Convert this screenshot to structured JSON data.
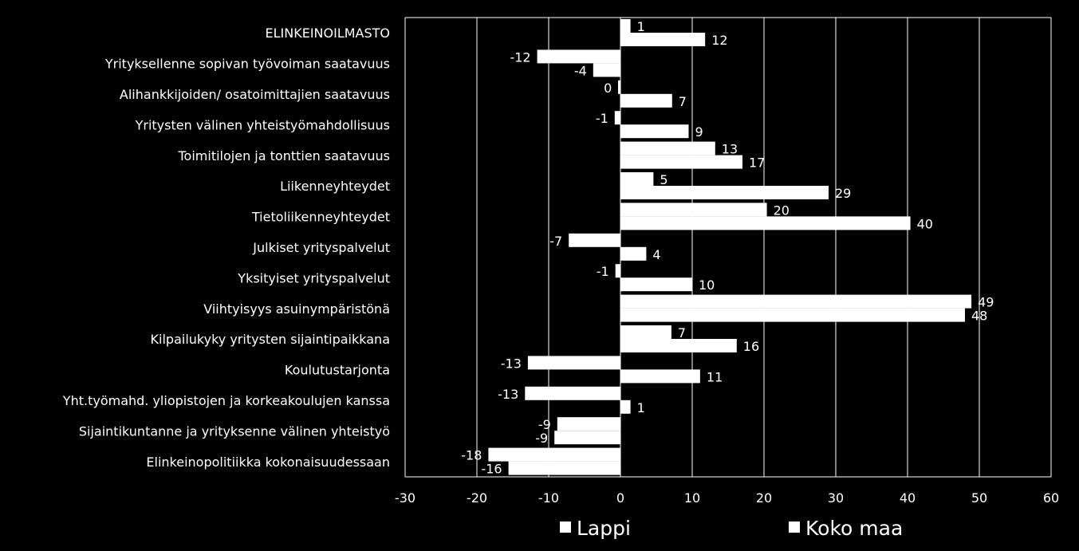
{
  "chart_data": {
    "type": "bar",
    "orientation": "horizontal",
    "categories": [
      "ELINKEINOILMASTO",
      "Yrityksellenne sopivan työvoiman saatavuus",
      "Alihankkijoiden/ osatoimittajien saatavuus",
      "Yritysten välinen yhteistyömahdollisuus",
      "Toimitilojen ja tonttien saatavuus",
      "Liikenneyhteydet",
      "Tietoliikenneyhteydet",
      "Julkiset yrityspalvelut",
      "Yksityiset yrityspalvelut",
      "Viihtyisyys asuinympäristönä",
      "Kilpailukyky yritysten sijaintipaikkana",
      "Koulutustarjonta",
      "Yht.työmahd. yliopistojen ja korkeakoulujen kanssa",
      "Sijaintikuntanne ja yrityksenne välinen yhteistyö",
      "Elinkeinopolitiikka kokonaisuudessaan"
    ],
    "series": [
      {
        "name": "Lappi",
        "values": [
          1.4,
          -11.6,
          -0.3,
          -0.8,
          13.2,
          4.6,
          20.4,
          -7.2,
          -0.7,
          48.9,
          7.1,
          -12.9,
          -13.3,
          -8.8,
          -18.4
        ],
        "labels": [
          "1",
          "-12",
          "0",
          "-1",
          "13",
          "5",
          "20",
          "-7",
          "-1",
          "49",
          "7",
          "-13",
          "-13",
          "-9",
          "-18"
        ]
      },
      {
        "name": "Koko maa",
        "values": [
          11.8,
          -3.8,
          7.2,
          9.5,
          17.0,
          29.0,
          40.4,
          3.6,
          10.0,
          48.0,
          16.2,
          11.1,
          1.4,
          -9.2,
          -15.6
        ],
        "labels": [
          "12",
          "-4",
          "7",
          "9",
          "17",
          "29",
          "40",
          "4",
          "10",
          "48",
          "16",
          "11",
          "1",
          "-9",
          "-16"
        ]
      }
    ],
    "xlim": [
      -30,
      60
    ],
    "xticks": [
      "-30",
      "-20",
      "-10",
      "0",
      "10",
      "20",
      "30",
      "40",
      "50",
      "60"
    ],
    "grid": true,
    "legend_position": "bottom",
    "colors": {
      "background": "#000000",
      "bar": "#FFFFFF",
      "text": "#FFFFFF",
      "grid": "#FFFFFF"
    }
  }
}
